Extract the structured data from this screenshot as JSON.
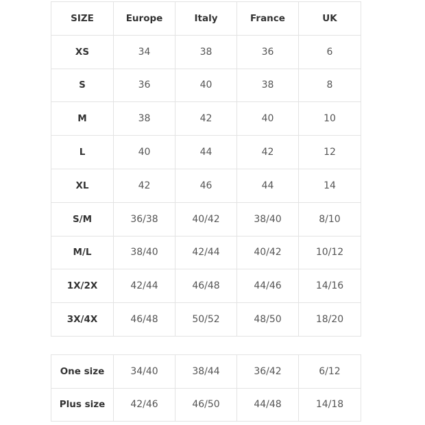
{
  "size_chart": {
    "headers": [
      "SIZE",
      "Europe",
      "Italy",
      "France",
      "UK"
    ],
    "rows": [
      [
        "XS",
        "34",
        "38",
        "36",
        "6"
      ],
      [
        "S",
        "36",
        "40",
        "38",
        "8"
      ],
      [
        "M",
        "38",
        "42",
        "40",
        "10"
      ],
      [
        "L",
        "40",
        "44",
        "42",
        "12"
      ],
      [
        "XL",
        "42",
        "46",
        "44",
        "14"
      ],
      [
        "S/M",
        "36/38",
        "40/42",
        "38/40",
        "8/10"
      ],
      [
        "M/L",
        "38/40",
        "42/44",
        "40/42",
        "10/12"
      ],
      [
        "1X/2X",
        "42/44",
        "46/48",
        "44/46",
        "14/16"
      ],
      [
        "3X/4X",
        "46/48",
        "50/52",
        "48/50",
        "18/20"
      ]
    ]
  },
  "extra_chart": {
    "rows": [
      [
        "One size",
        "34/40",
        "38/44",
        "36/42",
        "6/12"
      ],
      [
        "Plus size",
        "42/46",
        "46/50",
        "44/48",
        "14/18"
      ]
    ]
  }
}
